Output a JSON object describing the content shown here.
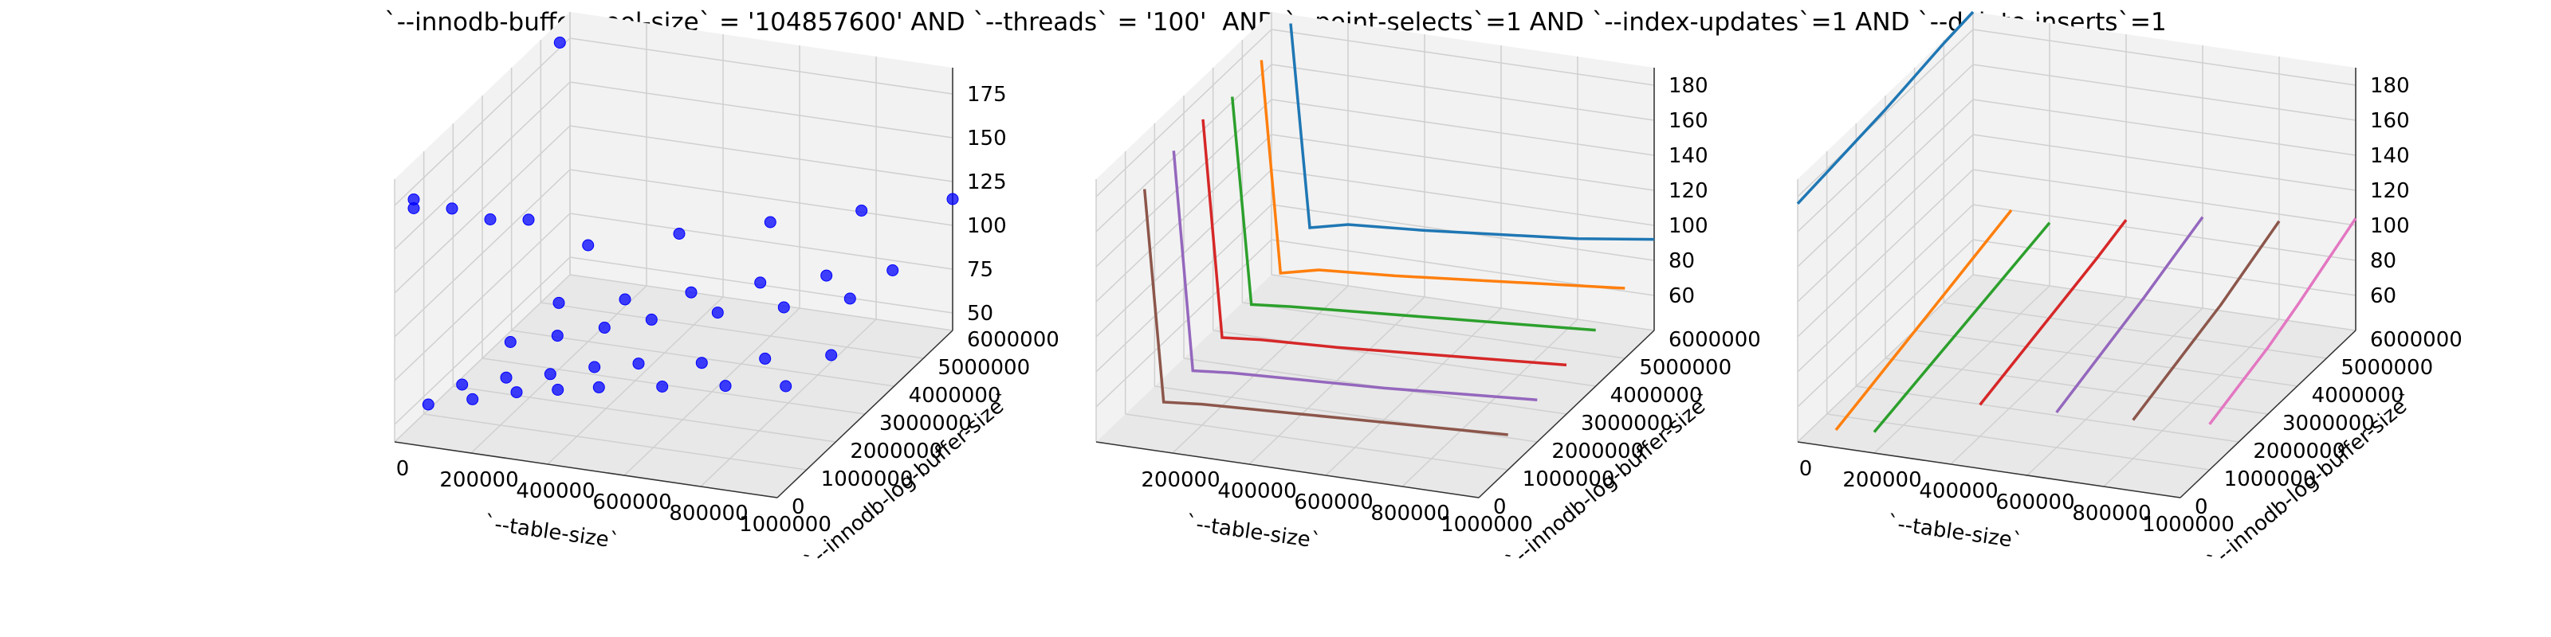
{
  "figure": {
    "title": "`--innodb-buffer-pool-size` = '104857600' AND `--threads` = '100'  AND `--point-selects`=1 AND `--index-updates`=1 AND `--delete-inserts`=1"
  },
  "colors": {
    "scatter": "#0000ff",
    "series": [
      "#1f77b4",
      "#ff7f0e",
      "#2ca02c",
      "#d62728",
      "#9467bd",
      "#8c564b",
      "#e377c2"
    ],
    "pane": "#f2f2f2",
    "grid": "#d0d0d0"
  },
  "chart_data": [
    {
      "type": "scatter",
      "xlabel": "`--table-size`",
      "ylabel": "`--innodb-log-buffer-size`",
      "zlabel": "",
      "x_ticks": [
        "0",
        "200000",
        "400000",
        "600000",
        "800000",
        "1000000"
      ],
      "y_ticks": [
        "0",
        "1000000",
        "2000000",
        "3000000",
        "4000000",
        "5000000",
        "6000000"
      ],
      "z_ticks": [
        50,
        75,
        100,
        125,
        150,
        175
      ],
      "xlim": [
        0,
        1000000
      ],
      "ylim": [
        0,
        6000000
      ],
      "zlim": [
        40,
        190
      ],
      "points": [
        [
          50000,
          0,
          180
        ],
        [
          50000,
          0,
          175
        ],
        [
          150000,
          0,
          178
        ],
        [
          250000,
          0,
          175
        ],
        [
          350000,
          0,
          178
        ],
        [
          50000,
          5000000,
          190
        ],
        [
          50000,
          500000,
          55
        ],
        [
          150000,
          700000,
          58
        ],
        [
          250000,
          900000,
          62
        ],
        [
          350000,
          1000000,
          65
        ],
        [
          450000,
          1100000,
          68
        ],
        [
          600000,
          1300000,
          70
        ],
        [
          750000,
          1500000,
          72
        ],
        [
          900000,
          1600000,
          75
        ],
        [
          100000,
          1000000,
          60
        ],
        [
          200000,
          1200000,
          64
        ],
        [
          300000,
          1400000,
          66
        ],
        [
          400000,
          1600000,
          70
        ],
        [
          500000,
          1800000,
          72
        ],
        [
          650000,
          2000000,
          74
        ],
        [
          800000,
          2200000,
          78
        ],
        [
          950000,
          2500000,
          80
        ],
        [
          150000,
          2000000,
          70
        ],
        [
          250000,
          2300000,
          72
        ],
        [
          350000,
          2600000,
          75
        ],
        [
          450000,
          2900000,
          78
        ],
        [
          600000,
          3200000,
          82
        ],
        [
          750000,
          3500000,
          85
        ],
        [
          900000,
          3800000,
          90
        ],
        [
          200000,
          3000000,
          78
        ],
        [
          350000,
          3300000,
          80
        ],
        [
          500000,
          3600000,
          84
        ],
        [
          650000,
          4000000,
          88
        ],
        [
          800000,
          4300000,
          92
        ],
        [
          950000,
          4600000,
          95
        ],
        [
          200000,
          4000000,
          95
        ],
        [
          400000,
          4500000,
          100
        ],
        [
          600000,
          5000000,
          105
        ],
        [
          800000,
          5500000,
          110
        ],
        [
          1000000,
          6000000,
          115
        ]
      ]
    },
    {
      "type": "line",
      "xlabel": "`--table-size`",
      "ylabel": "`--innodb-log-buffer-size`",
      "zlabel": "",
      "x_ticks": [
        "200000",
        "400000",
        "600000",
        "800000",
        "1000000"
      ],
      "y_ticks": [
        "0",
        "1000000",
        "2000000",
        "3000000",
        "4000000",
        "5000000",
        "6000000"
      ],
      "z_ticks": [
        60,
        80,
        100,
        120,
        140,
        160,
        180
      ],
      "xlim": [
        0,
        1000000
      ],
      "ylim": [
        0,
        6000000
      ],
      "zlim": [
        40,
        190
      ],
      "series": [
        {
          "y": 6000000,
          "x": [
            50000,
            100000,
            200000,
            400000,
            600000,
            800000,
            1000000
          ],
          "z": [
            185,
            70,
            75,
            78,
            82,
            86,
            92
          ]
        },
        {
          "y": 5000000,
          "x": [
            50000,
            100000,
            200000,
            400000,
            600000,
            800000,
            1000000
          ],
          "z": [
            180,
            60,
            65,
            68,
            72,
            76,
            80
          ]
        },
        {
          "y": 4000000,
          "x": [
            50000,
            100000,
            200000,
            400000,
            600000,
            800000,
            1000000
          ],
          "z": [
            175,
            58,
            60,
            63,
            66,
            69,
            72
          ]
        },
        {
          "y": 3000000,
          "x": [
            50000,
            100000,
            200000,
            400000,
            600000,
            800000,
            1000000
          ],
          "z": [
            178,
            55,
            57,
            59,
            62,
            65,
            68
          ]
        },
        {
          "y": 2000000,
          "x": [
            50000,
            100000,
            200000,
            400000,
            600000,
            800000,
            1000000
          ],
          "z": [
            176,
            52,
            54,
            56,
            58,
            61,
            64
          ]
        },
        {
          "y": 1000000,
          "x": [
            50000,
            100000,
            200000,
            400000,
            600000,
            800000,
            1000000
          ],
          "z": [
            170,
            50,
            52,
            54,
            56,
            58,
            60
          ]
        }
      ]
    },
    {
      "type": "line",
      "xlabel": "`--table-size`",
      "ylabel": "`--innodb-log-buffer-size`",
      "zlabel": "",
      "x_ticks": [
        "0",
        "200000",
        "400000",
        "600000",
        "800000",
        "1000000"
      ],
      "y_ticks": [
        "0",
        "1000000",
        "2000000",
        "3000000",
        "4000000",
        "5000000",
        "6000000"
      ],
      "z_ticks": [
        60,
        80,
        100,
        120,
        140,
        160,
        180
      ],
      "xlim": [
        0,
        1000000
      ],
      "ylim": [
        0,
        6000000
      ],
      "zlim": [
        40,
        190
      ],
      "series": [
        {
          "x": 0,
          "y": [
            0,
            1000000,
            2000000,
            3000000,
            4000000,
            5000000,
            6000000
          ],
          "z": [
            176,
            178,
            180,
            182,
            185,
            188,
            190
          ]
        },
        {
          "x": 100000,
          "y": [
            0,
            1000000,
            2000000,
            3000000,
            4000000,
            5000000,
            6000000
          ],
          "z": [
            50,
            55,
            60,
            65,
            70,
            75,
            80
          ]
        },
        {
          "x": 200000,
          "y": [
            0,
            1000000,
            2000000,
            3000000,
            4000000,
            5000000,
            6000000
          ],
          "z": [
            52,
            56,
            60,
            64,
            68,
            72,
            76
          ]
        },
        {
          "x": 400000,
          "y": [
            1000000,
            2000000,
            3000000,
            4000000,
            5000000,
            6000000
          ],
          "z": [
            58,
            63,
            68,
            73,
            78,
            84
          ]
        },
        {
          "x": 600000,
          "y": [
            1000000,
            2000000,
            3000000,
            4000000,
            5000000,
            6000000
          ],
          "z": [
            60,
            66,
            72,
            78,
            85,
            92
          ]
        },
        {
          "x": 800000,
          "y": [
            1000000,
            2000000,
            3000000,
            4000000,
            5000000,
            6000000
          ],
          "z": [
            62,
            68,
            74,
            80,
            88,
            96
          ]
        },
        {
          "x": 1000000,
          "y": [
            1000000,
            2000000,
            3000000,
            4000000,
            5000000,
            6000000
          ],
          "z": [
            66,
            72,
            78,
            86,
            95,
            104
          ]
        }
      ]
    }
  ]
}
